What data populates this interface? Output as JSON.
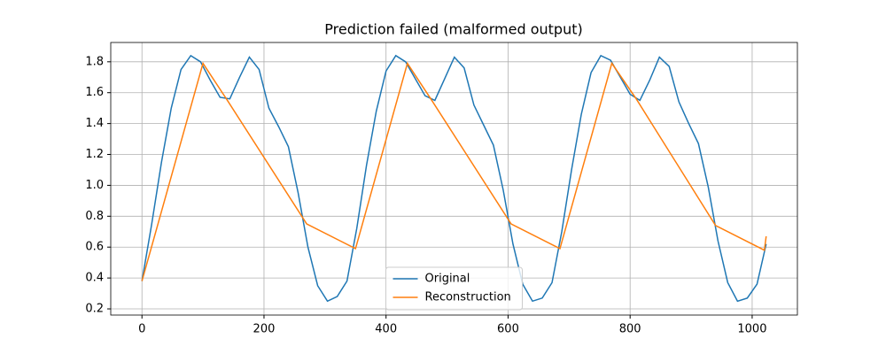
{
  "chart_data": {
    "type": "line",
    "title": "Prediction failed (malformed output)",
    "xlim": [
      -51.15,
      1074.15
    ],
    "ylim": [
      0.16,
      1.925
    ],
    "xticks": [
      0,
      200,
      400,
      600,
      800,
      1000
    ],
    "yticks": [
      0.2,
      0.4,
      0.6,
      0.8,
      {
        "value": 1,
        "label": "1.0"
      },
      1.2,
      1.4,
      1.6,
      1.8
    ],
    "grid": true,
    "legend": "lower center",
    "series": [
      {
        "name": "Original",
        "color": "#1f77b4",
        "x": [
          0,
          16,
          32,
          48,
          64,
          80,
          96,
          112,
          128,
          144,
          160,
          176,
          192,
          208,
          224,
          240,
          256,
          272,
          288,
          304,
          320,
          336,
          352,
          368,
          384,
          400,
          416,
          432,
          448,
          464,
          480,
          496,
          512,
          528,
          544,
          560,
          576,
          592,
          608,
          624,
          640,
          656,
          672,
          688,
          704,
          720,
          736,
          752,
          768,
          784,
          800,
          816,
          832,
          848,
          864,
          880,
          896,
          912,
          928,
          944,
          960,
          976,
          992,
          1008,
          1023
        ],
        "values": [
          0.38,
          0.75,
          1.15,
          1.5,
          1.75,
          1.84,
          1.8,
          1.68,
          1.57,
          1.56,
          1.7,
          1.83,
          1.75,
          1.5,
          1.38,
          1.25,
          0.95,
          0.6,
          0.35,
          0.25,
          0.28,
          0.38,
          0.72,
          1.13,
          1.48,
          1.74,
          1.84,
          1.8,
          1.69,
          1.58,
          1.55,
          1.69,
          1.83,
          1.76,
          1.52,
          1.39,
          1.26,
          0.97,
          0.62,
          0.36,
          0.25,
          0.27,
          0.37,
          0.7,
          1.1,
          1.46,
          1.73,
          1.84,
          1.81,
          1.7,
          1.59,
          1.55,
          1.68,
          1.83,
          1.77,
          1.54,
          1.4,
          1.27,
          0.99,
          0.64,
          0.37,
          0.25,
          0.27,
          0.36,
          0.62
        ]
      },
      {
        "name": "Reconstruction",
        "color": "#ff7f0e",
        "x": [
          0,
          100,
          140,
          270,
          350,
          435,
          475,
          605,
          685,
          770,
          810,
          940,
          1020,
          1023
        ],
        "values": [
          0.38,
          1.79,
          1.55,
          0.75,
          0.59,
          1.79,
          1.55,
          0.75,
          0.59,
          1.79,
          1.56,
          0.74,
          0.58,
          0.67
        ]
      }
    ]
  }
}
